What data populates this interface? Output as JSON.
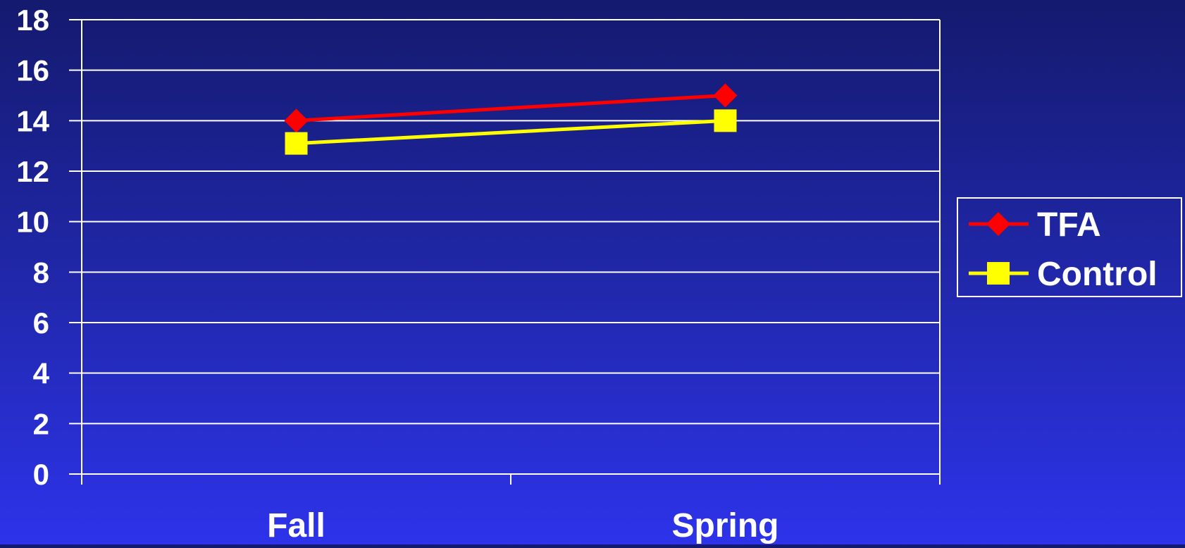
{
  "chart_data": {
    "type": "line",
    "categories": [
      "Fall",
      "Spring"
    ],
    "series": [
      {
        "name": "TFA",
        "values": [
          14,
          15
        ],
        "color": "#ff0000",
        "marker": "diamond"
      },
      {
        "name": "Control",
        "values": [
          13.1,
          14
        ],
        "color": "#ffff00",
        "marker": "square"
      }
    ],
    "ylim": [
      0,
      18
    ],
    "yticks": [
      0,
      2,
      4,
      6,
      8,
      10,
      12,
      14,
      16,
      18
    ],
    "title": "",
    "xlabel": "",
    "ylabel": "",
    "grid": true,
    "legend_position": "right"
  },
  "colors": {
    "gridline": "#ffffff",
    "text": "#ffffff"
  }
}
